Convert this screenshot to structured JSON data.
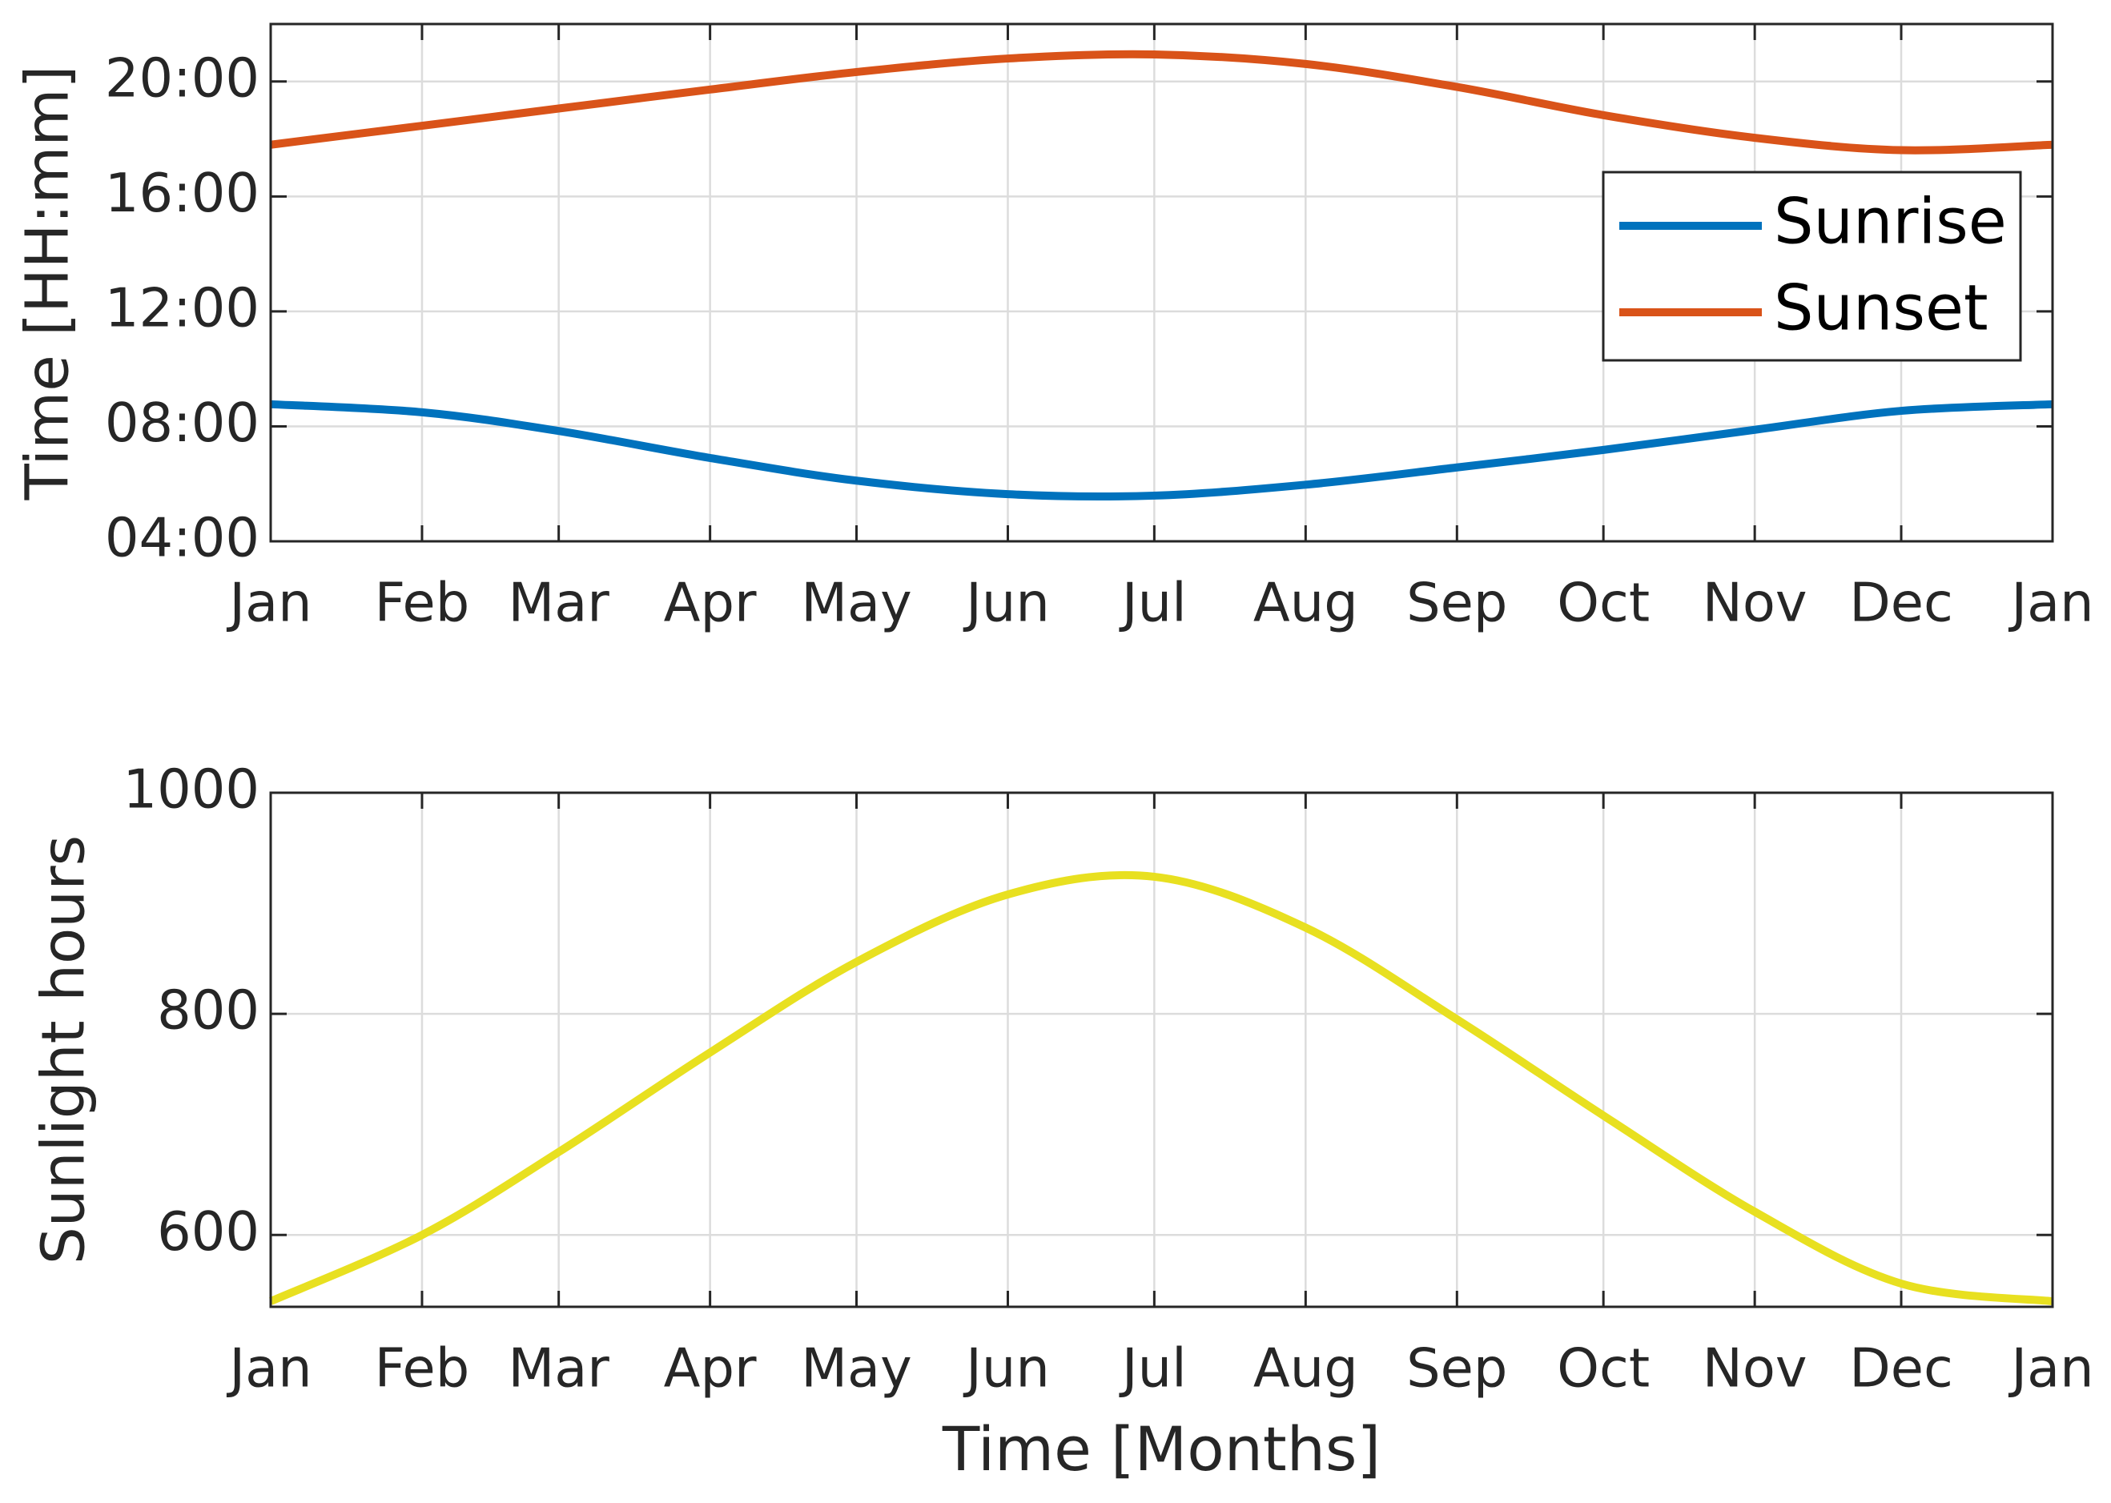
{
  "chart_data": [
    {
      "type": "line",
      "ylabel": "Time [HH:mm]",
      "x": [
        0,
        31,
        59,
        90,
        120,
        151,
        181,
        212,
        243,
        273,
        304,
        334,
        365
      ],
      "xlim": [
        0,
        365
      ],
      "xticks": [
        {
          "value": 0,
          "label": "Jan"
        },
        {
          "value": 31,
          "label": "Feb"
        },
        {
          "value": 59,
          "label": "Mar"
        },
        {
          "value": 90,
          "label": "Apr"
        },
        {
          "value": 120,
          "label": "May"
        },
        {
          "value": 151,
          "label": "Jun"
        },
        {
          "value": 181,
          "label": "Jul"
        },
        {
          "value": 212,
          "label": "Aug"
        },
        {
          "value": 243,
          "label": "Sep"
        },
        {
          "value": 273,
          "label": "Oct"
        },
        {
          "value": 304,
          "label": "Nov"
        },
        {
          "value": 334,
          "label": "Dec"
        },
        {
          "value": 365,
          "label": "Jan"
        }
      ],
      "ylim": [
        4,
        22
      ],
      "yticks": [
        {
          "value": 4,
          "label": "04:00"
        },
        {
          "value": 8,
          "label": "08:00"
        },
        {
          "value": 12,
          "label": "12:00"
        },
        {
          "value": 16,
          "label": "16:00"
        },
        {
          "value": 20,
          "label": "20:00"
        }
      ],
      "grid": true,
      "legend": "upper right",
      "series": [
        {
          "name": "Sunrise",
          "color": "#0072bd",
          "values": [
            8.77,
            8.49,
            7.84,
            6.9,
            6.11,
            5.64,
            5.59,
            5.97,
            6.57,
            7.18,
            7.88,
            8.54,
            8.77
          ]
        },
        {
          "name": "Sunset",
          "color": "#d95319",
          "values": [
            17.8,
            18.46,
            19.06,
            19.72,
            20.33,
            20.8,
            20.94,
            20.61,
            19.81,
            18.83,
            18.04,
            17.61,
            17.8
          ]
        }
      ]
    },
    {
      "type": "line",
      "xlabel": "Time [Months]",
      "ylabel": "Sunlight hours",
      "x": [
        0,
        31,
        59,
        90,
        120,
        151,
        181,
        212,
        243,
        273,
        304,
        334,
        365
      ],
      "xlim": [
        0,
        365
      ],
      "xticks": [
        {
          "value": 0,
          "label": "Jan"
        },
        {
          "value": 31,
          "label": "Feb"
        },
        {
          "value": 59,
          "label": "Mar"
        },
        {
          "value": 90,
          "label": "Apr"
        },
        {
          "value": 120,
          "label": "May"
        },
        {
          "value": 151,
          "label": "Jun"
        },
        {
          "value": 181,
          "label": "Jul"
        },
        {
          "value": 212,
          "label": "Aug"
        },
        {
          "value": 243,
          "label": "Sep"
        },
        {
          "value": 273,
          "label": "Oct"
        },
        {
          "value": 304,
          "label": "Nov"
        },
        {
          "value": 334,
          "label": "Dec"
        },
        {
          "value": 365,
          "label": "Jan"
        }
      ],
      "ylim": [
        535,
        1000
      ],
      "yticks": [
        600,
        800,
        1000
      ],
      "grid": true,
      "series": [
        {
          "color": "#e8e020",
          "values": [
            540,
            600,
            675,
            765,
            847,
            908,
            924,
            878,
            795,
            708,
            621,
            556,
            540
          ]
        }
      ]
    }
  ]
}
